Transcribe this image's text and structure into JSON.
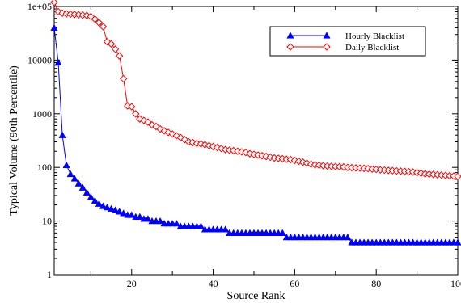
{
  "chart_data": {
    "type": "line",
    "title": "",
    "xlabel": "Source Rank",
    "ylabel": "Typical Volume (90th Percentile)",
    "x_scale": "linear",
    "y_scale": "log",
    "xlim": [
      1,
      100
    ],
    "ylim": [
      1,
      100000
    ],
    "x_ticks": [
      20,
      40,
      60,
      80,
      100
    ],
    "x_tick_labels": [
      "20",
      "40",
      "60",
      "80",
      "100"
    ],
    "y_ticks": [
      1,
      10,
      100,
      1000,
      10000,
      100000
    ],
    "y_tick_labels": [
      "1",
      "10",
      "100",
      "1000",
      "10000",
      "1e+05"
    ],
    "grid": false,
    "legend_position": "top-right",
    "series": [
      {
        "name": "Hourly Blacklist",
        "color": "#0000ff",
        "marker": "filled-triangle",
        "x": [
          1,
          2,
          3,
          4,
          5,
          6,
          7,
          8,
          9,
          10,
          11,
          12,
          13,
          14,
          15,
          16,
          17,
          18,
          19,
          20,
          21,
          22,
          23,
          24,
          25,
          26,
          27,
          28,
          29,
          30,
          31,
          32,
          33,
          34,
          35,
          36,
          37,
          38,
          39,
          40,
          41,
          42,
          43,
          44,
          45,
          46,
          47,
          48,
          49,
          50,
          51,
          52,
          53,
          54,
          55,
          56,
          57,
          58,
          59,
          60,
          61,
          62,
          63,
          64,
          65,
          66,
          67,
          68,
          69,
          70,
          71,
          72,
          73,
          74,
          75,
          76,
          77,
          78,
          79,
          80,
          81,
          82,
          83,
          84,
          85,
          86,
          87,
          88,
          89,
          90,
          91,
          92,
          93,
          94,
          95,
          96,
          97,
          98,
          99,
          100
        ],
        "y": [
          40000,
          9000,
          400,
          110,
          75,
          62,
          50,
          42,
          34,
          28,
          24,
          21,
          19,
          18,
          17,
          16,
          15,
          14,
          13,
          13,
          12,
          12,
          11,
          11,
          10,
          10,
          10,
          9,
          9,
          9,
          9,
          8,
          8,
          8,
          8,
          8,
          8,
          7,
          7,
          7,
          7,
          7,
          7,
          6,
          6,
          6,
          6,
          6,
          6,
          6,
          6,
          6,
          6,
          6,
          6,
          6,
          6,
          5,
          5,
          5,
          5,
          5,
          5,
          5,
          5,
          5,
          5,
          5,
          5,
          5,
          5,
          5,
          5,
          4,
          4,
          4,
          4,
          4,
          4,
          4,
          4,
          4,
          4,
          4,
          4,
          4,
          4,
          4,
          4,
          4,
          4,
          4,
          4,
          4,
          4,
          4,
          4,
          4,
          4,
          4
        ]
      },
      {
        "name": "Daily Blacklist",
        "color": "#ff0000",
        "marker": "open-diamond",
        "x": [
          1,
          2,
          3,
          4,
          5,
          6,
          7,
          8,
          9,
          10,
          11,
          12,
          13,
          14,
          15,
          16,
          17,
          18,
          19,
          20,
          21,
          22,
          23,
          24,
          25,
          26,
          27,
          28,
          29,
          30,
          31,
          32,
          33,
          34,
          35,
          36,
          37,
          38,
          39,
          40,
          41,
          42,
          43,
          44,
          45,
          46,
          47,
          48,
          49,
          50,
          51,
          52,
          53,
          54,
          55,
          56,
          57,
          58,
          59,
          60,
          61,
          62,
          63,
          64,
          65,
          66,
          67,
          68,
          69,
          70,
          71,
          72,
          73,
          74,
          75,
          76,
          77,
          78,
          79,
          80,
          81,
          82,
          83,
          84,
          85,
          86,
          87,
          88,
          89,
          90,
          91,
          92,
          93,
          94,
          95,
          96,
          97,
          98,
          99,
          100
        ],
        "y": [
          120000,
          80000,
          75000,
          73000,
          72000,
          71000,
          70000,
          69000,
          68000,
          65000,
          58000,
          50000,
          42000,
          22000,
          20000,
          16000,
          12000,
          4500,
          1400,
          1350,
          1000,
          800,
          750,
          700,
          620,
          580,
          520,
          480,
          450,
          420,
          390,
          360,
          330,
          300,
          290,
          280,
          275,
          265,
          255,
          245,
          235,
          225,
          215,
          210,
          205,
          200,
          195,
          190,
          180,
          175,
          170,
          165,
          160,
          155,
          150,
          148,
          145,
          142,
          140,
          135,
          130,
          125,
          120,
          115,
          112,
          110,
          108,
          106,
          105,
          104,
          103,
          102,
          100,
          99,
          98,
          97,
          96,
          95,
          93,
          92,
          90,
          89,
          88,
          87,
          86,
          85,
          84,
          83,
          82,
          80,
          78,
          76,
          75,
          74,
          73,
          72,
          71,
          70,
          69,
          68
        ]
      }
    ]
  }
}
